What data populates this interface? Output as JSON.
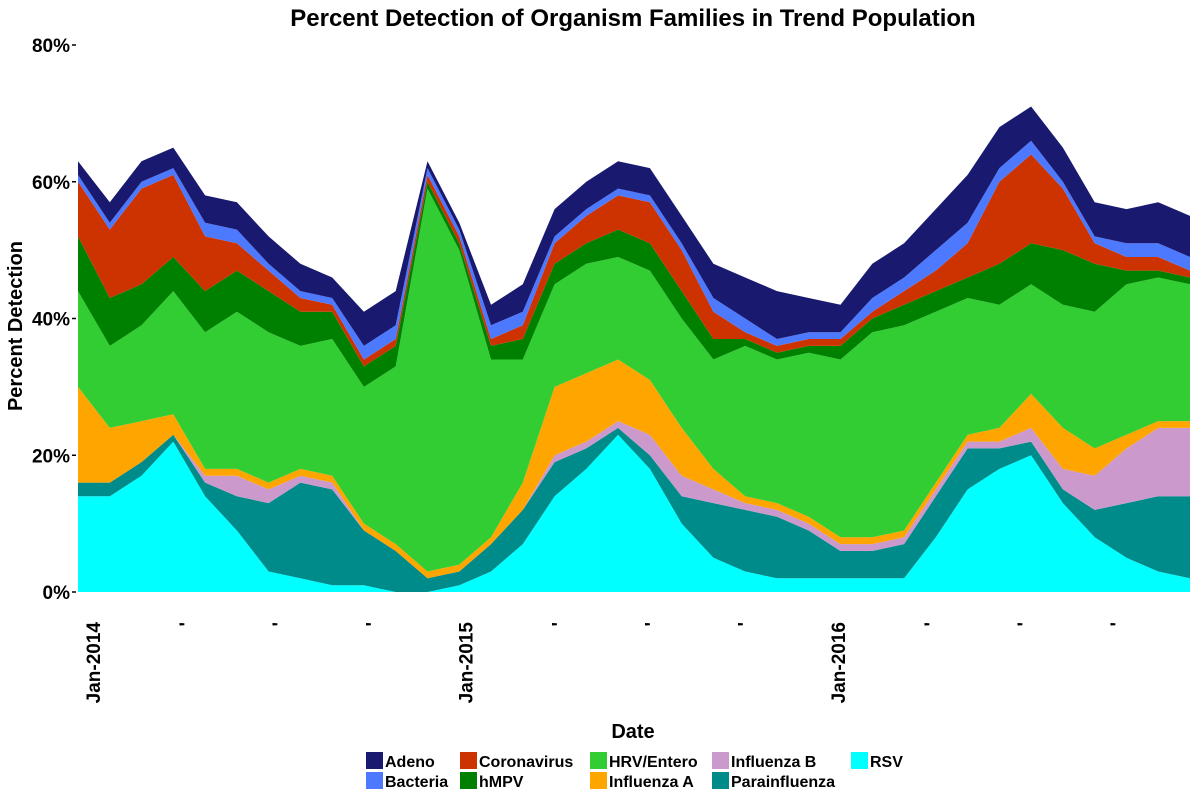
{
  "chart_data": {
    "type": "area",
    "stacked": true,
    "title": "Percent Detection of Organism Families in Trend Population",
    "xlabel": "Date",
    "ylabel": "Percent Detection",
    "ylim": [
      0,
      80
    ],
    "yticks": [
      0,
      20,
      40,
      60,
      80
    ],
    "ytick_labels": [
      "0%",
      "20%",
      "40%",
      "60%",
      "80%"
    ],
    "xlim": [
      0,
      35
    ],
    "xticks": [
      0,
      1,
      2,
      3,
      4,
      5,
      6,
      7,
      8,
      9,
      10,
      11
    ],
    "xtick_labels": [
      "Jan-2014",
      "'",
      "'",
      "'",
      "Jan-2015",
      "'",
      "'",
      "'",
      "Jan-2016",
      "'",
      "'",
      "'"
    ],
    "x_months": [
      0,
      1,
      2,
      3,
      4,
      5,
      6,
      7,
      8,
      9,
      10,
      11,
      12,
      13,
      14,
      15,
      16,
      17,
      18,
      19,
      20,
      21,
      22,
      23,
      24,
      25,
      26,
      27,
      28,
      29,
      30,
      31,
      32,
      33,
      34,
      35
    ],
    "legend_position": "bottom",
    "grid": false,
    "series": [
      {
        "name": "RSV",
        "color": "#00FFFF",
        "values": [
          14,
          14,
          17,
          22,
          14,
          9,
          3,
          2,
          1,
          1,
          0,
          0,
          1,
          3,
          7,
          14,
          18,
          23,
          18,
          10,
          5,
          3,
          2,
          2,
          2,
          2,
          2,
          8,
          15,
          18,
          20,
          13,
          8,
          5,
          3,
          2
        ]
      },
      {
        "name": "Parainfluenza",
        "color": "#008B8B",
        "values": [
          2,
          2,
          2,
          1,
          2,
          5,
          10,
          14,
          14,
          8,
          6,
          2,
          2,
          4,
          5,
          5,
          3,
          1,
          2,
          4,
          8,
          9,
          9,
          7,
          4,
          4,
          5,
          6,
          6,
          3,
          2,
          2,
          4,
          8,
          11,
          12
        ]
      },
      {
        "name": "Influenza B",
        "color": "#CC99CC",
        "values": [
          0,
          0,
          0,
          0,
          1,
          3,
          2,
          1,
          1,
          0,
          0,
          0,
          0,
          0,
          0,
          1,
          1,
          1,
          3,
          3,
          2,
          1,
          1,
          1,
          1,
          1,
          1,
          1,
          1,
          1,
          2,
          3,
          5,
          8,
          10,
          10
        ]
      },
      {
        "name": "Influenza A",
        "color": "#FFA500",
        "values": [
          14,
          8,
          6,
          3,
          1,
          1,
          1,
          1,
          1,
          1,
          1,
          1,
          1,
          1,
          4,
          10,
          10,
          9,
          8,
          7,
          3,
          1,
          1,
          1,
          1,
          1,
          1,
          1,
          1,
          2,
          5,
          6,
          4,
          2,
          1,
          1
        ]
      },
      {
        "name": "HRV/Entero",
        "color": "#32CD32",
        "values": [
          14,
          12,
          14,
          18,
          20,
          23,
          22,
          18,
          20,
          20,
          26,
          56,
          46,
          26,
          18,
          15,
          16,
          15,
          16,
          16,
          16,
          22,
          21,
          24,
          26,
          30,
          30,
          25,
          20,
          18,
          16,
          18,
          20,
          22,
          21,
          20
        ]
      },
      {
        "name": "hMPV",
        "color": "#008000",
        "values": [
          8,
          7,
          6,
          5,
          6,
          6,
          6,
          5,
          4,
          3,
          3,
          1,
          1,
          2,
          3,
          3,
          3,
          4,
          4,
          4,
          3,
          1,
          1,
          1,
          2,
          2,
          3,
          3,
          3,
          6,
          6,
          8,
          7,
          2,
          1,
          1
        ]
      },
      {
        "name": "Coronavirus",
        "color": "#CC3300",
        "values": [
          8,
          10,
          14,
          12,
          8,
          4,
          3,
          2,
          1,
          1,
          1,
          1,
          1,
          1,
          2,
          3,
          4,
          5,
          6,
          6,
          4,
          1,
          1,
          1,
          1,
          1,
          2,
          3,
          5,
          12,
          13,
          9,
          3,
          2,
          2,
          1
        ]
      },
      {
        "name": "Bacteria",
        "color": "#4D79FF",
        "values": [
          1,
          1,
          1,
          1,
          2,
          2,
          1,
          1,
          1,
          2,
          2,
          1,
          1,
          2,
          2,
          1,
          1,
          1,
          1,
          1,
          2,
          2,
          1,
          1,
          1,
          2,
          2,
          3,
          3,
          2,
          2,
          1,
          1,
          2,
          2,
          2
        ]
      },
      {
        "name": "Adeno",
        "color": "#191970",
        "values": [
          2,
          3,
          3,
          3,
          4,
          4,
          4,
          4,
          3,
          5,
          5,
          1,
          1,
          3,
          4,
          4,
          4,
          4,
          4,
          4,
          5,
          6,
          7,
          5,
          4,
          5,
          5,
          6,
          7,
          6,
          5,
          5,
          5,
          5,
          6,
          6
        ]
      }
    ],
    "legend_order": [
      "Adeno",
      "Coronavirus",
      "HRV/Entero",
      "Influenza B",
      "RSV",
      "Bacteria",
      "hMPV",
      "Influenza A",
      "Parainfluenza"
    ]
  }
}
